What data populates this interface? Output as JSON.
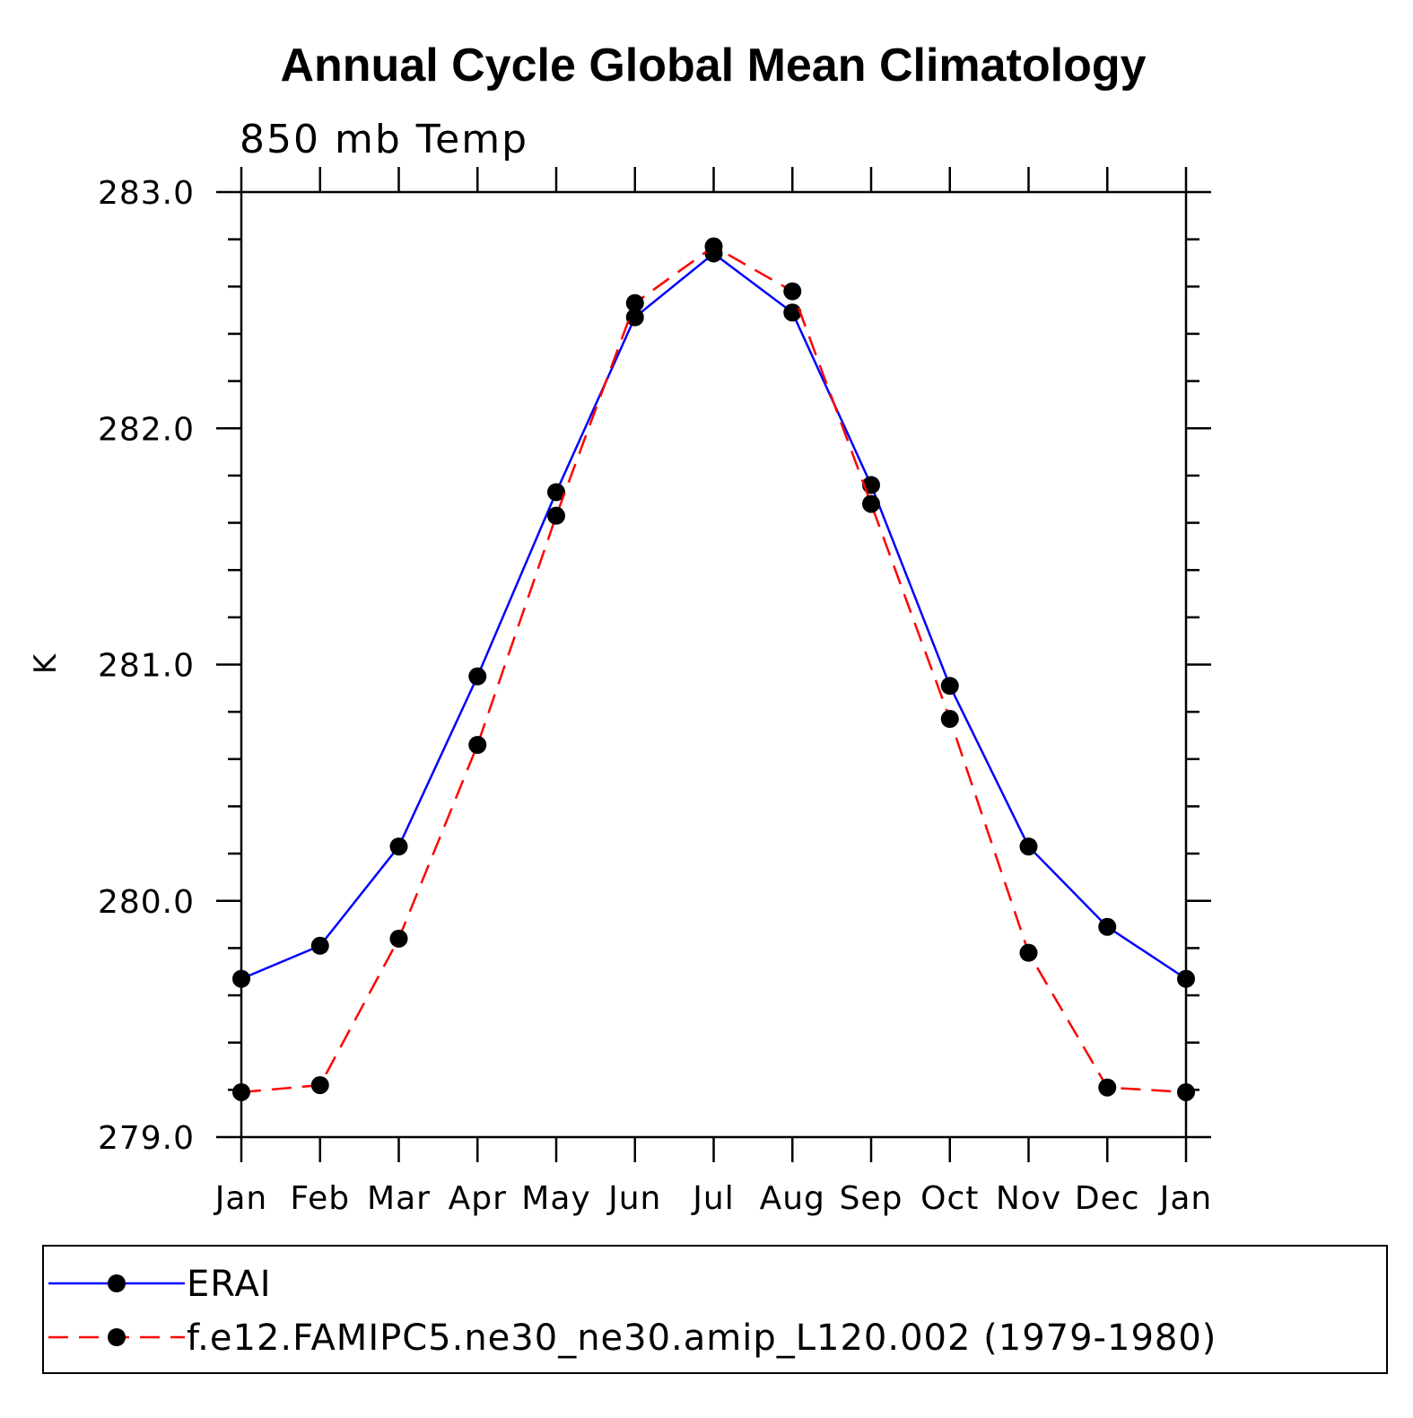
{
  "chart_data": {
    "type": "line",
    "title": "Annual Cycle Global Mean Climatology",
    "subtitle": "850 mb Temp",
    "xlabel": "",
    "ylabel": "K",
    "categories": [
      "Jan",
      "Feb",
      "Mar",
      "Apr",
      "May",
      "Jun",
      "Jul",
      "Aug",
      "Sep",
      "Oct",
      "Nov",
      "Dec",
      "Jan"
    ],
    "ylim": [
      279.0,
      283.0
    ],
    "yticks": [
      "279.0",
      "280.0",
      "281.0",
      "282.0",
      "283.0"
    ],
    "yminor_step": 0.2,
    "grid": false,
    "legend_position": "bottom",
    "series": [
      {
        "name": "ERAI",
        "color": "#0000ff",
        "dash": "solid",
        "marker": "filled-circle",
        "values": [
          279.67,
          279.81,
          280.23,
          280.95,
          281.73,
          282.47,
          282.74,
          282.49,
          281.76,
          280.91,
          280.23,
          279.89,
          279.67
        ]
      },
      {
        "name": "f.e12.FAMIPC5.ne30_ne30.amip_L120.002 (1979-1980)",
        "color": "#ff0000",
        "dash": "dashed",
        "marker": "filled-circle",
        "values": [
          279.19,
          279.22,
          279.84,
          280.66,
          281.63,
          282.53,
          282.77,
          282.58,
          281.68,
          280.77,
          279.78,
          279.21,
          279.19
        ]
      }
    ]
  }
}
